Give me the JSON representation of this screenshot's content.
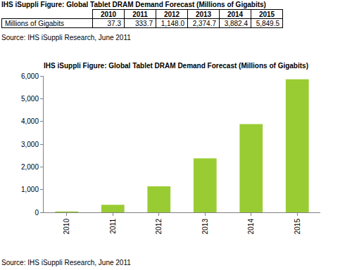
{
  "chart_data": {
    "type": "bar",
    "title": "IHS iSuppli Figure: Global Tablet DRAM Demand Forecast (Millions of Gigabits)",
    "categories": [
      "2010",
      "2011",
      "2012",
      "2013",
      "2014",
      "2015"
    ],
    "values": [
      37.3,
      333.7,
      1148.0,
      2374.7,
      3882.4,
      5849.5
    ],
    "color": "#99cc33",
    "ylim": [
      0,
      6000
    ],
    "yticks": [
      0,
      {
        "value": 1000,
        "label": "1,000"
      },
      {
        "value": 2000,
        "label": "2,000"
      },
      {
        "value": 3000,
        "label": "3,000"
      },
      {
        "value": 4000,
        "label": "4,000"
      },
      {
        "value": 5000,
        "label": "5,000"
      },
      {
        "value": 6000,
        "label": "6,000"
      }
    ],
    "grid": false,
    "source": "Source: IHS iSuppli Research, June 2011"
  },
  "table": {
    "title": "IHS iSuppli Figure: Global Tablet DRAM Demand Forecast (Millions of Gigabits)",
    "header": [
      "",
      "2010",
      "2011",
      "2012",
      "2013",
      "2014",
      "2015"
    ],
    "rows": [
      [
        "Millions of Gigabits",
        "37.3",
        "333.7",
        "1,148.0",
        "2,374.7",
        "3,882.4",
        "5,849.5"
      ]
    ],
    "source": "Source: IHS iSuppli Research, June 2011"
  }
}
